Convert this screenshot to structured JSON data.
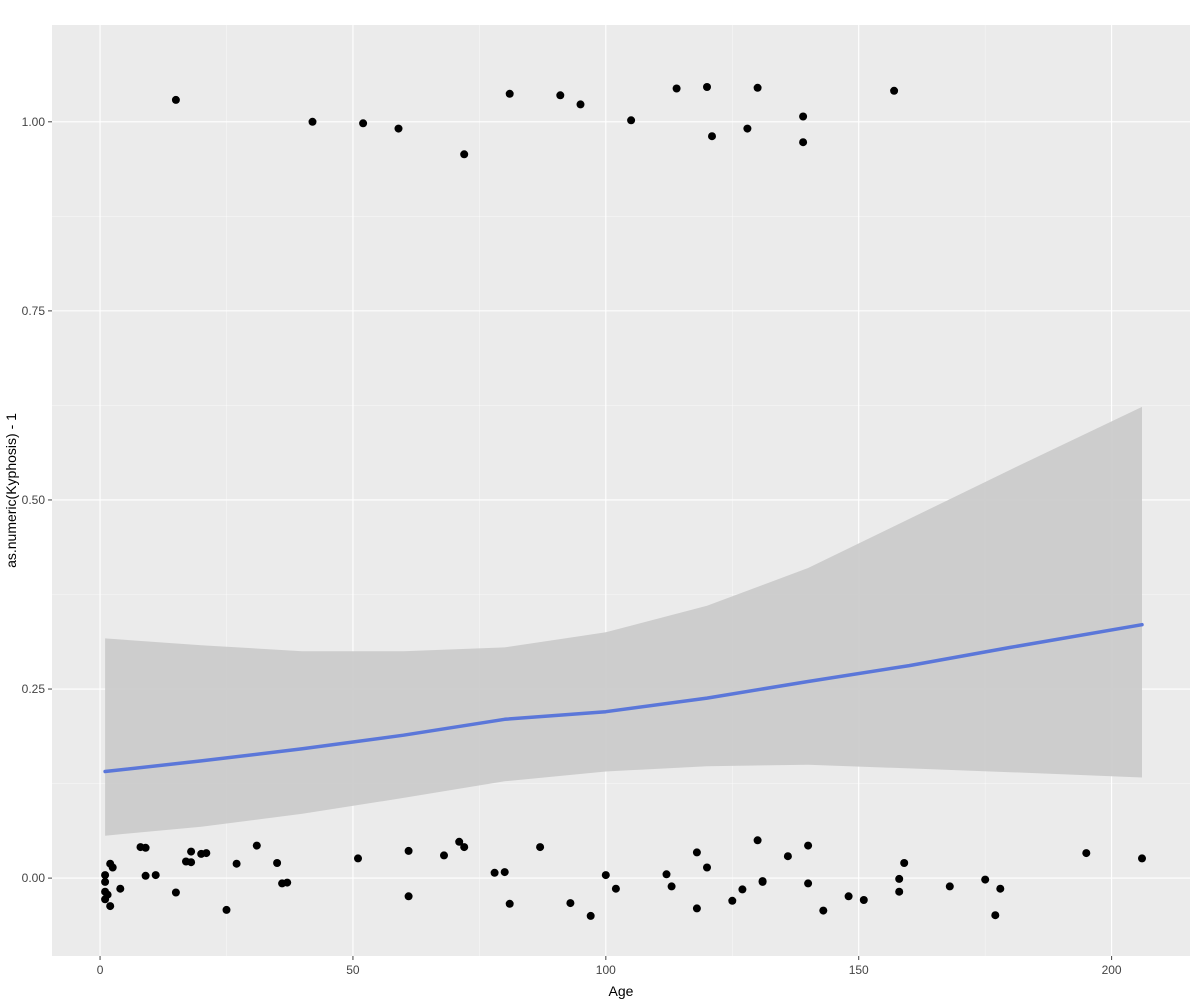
{
  "chart_data": {
    "type": "scatter",
    "title": "",
    "xlabel": "Age",
    "ylabel": "as.numeric(Kyphosis) - 1",
    "xlim": [
      -9.5,
      215.5
    ],
    "ylim": [
      -0.103,
      1.128
    ],
    "x_ticks": [
      0,
      50,
      100,
      150,
      200
    ],
    "y_ticks": [
      0,
      0.25,
      0.5,
      0.75,
      1
    ],
    "x_tick_labels": [
      "0",
      "50",
      "100",
      "150",
      "200"
    ],
    "y_tick_labels": [
      "0.00",
      "0.25",
      "0.50",
      "0.75",
      "1.00"
    ],
    "grid": true,
    "legend": "none",
    "colors": {
      "panel": "#EBEBEB",
      "grid": "#FFFFFF",
      "points": "#000000",
      "smooth_line": "#5B77D9",
      "ribbon": "#CBCBCB"
    },
    "series": [
      {
        "type": "scatter",
        "points": [
          [
            15,
            1.029
          ],
          [
            42,
            1.0
          ],
          [
            52,
            0.998
          ],
          [
            59,
            0.991
          ],
          [
            72,
            0.957
          ],
          [
            81,
            1.037
          ],
          [
            91,
            1.035
          ],
          [
            95,
            1.023
          ],
          [
            105,
            1.002
          ],
          [
            114,
            1.044
          ],
          [
            120,
            1.046
          ],
          [
            121,
            0.981
          ],
          [
            128,
            0.991
          ],
          [
            130,
            1.045
          ],
          [
            139,
            0.973
          ],
          [
            139,
            1.007
          ],
          [
            157,
            1.041
          ],
          [
            1,
            -0.005
          ],
          [
            1,
            -0.018
          ],
          [
            1,
            -0.028
          ],
          [
            1,
            0.004
          ],
          [
            1.5,
            -0.022
          ],
          [
            2,
            0.019
          ],
          [
            2,
            -0.037
          ],
          [
            2.5,
            0.014
          ],
          [
            4,
            -0.014
          ],
          [
            8,
            0.041
          ],
          [
            9,
            0.04
          ],
          [
            9,
            0.003
          ],
          [
            11,
            0.004
          ],
          [
            15,
            -0.019
          ],
          [
            17,
            0.022
          ],
          [
            18,
            0.021
          ],
          [
            18,
            0.035
          ],
          [
            20,
            0.032
          ],
          [
            21,
            0.033
          ],
          [
            25,
            -0.042
          ],
          [
            27,
            0.019
          ],
          [
            31,
            0.043
          ],
          [
            35,
            0.02
          ],
          [
            36,
            -0.007
          ],
          [
            37,
            -0.006
          ],
          [
            51,
            0.026
          ],
          [
            61,
            0.036
          ],
          [
            61,
            -0.024
          ],
          [
            68,
            0.03
          ],
          [
            71,
            0.048
          ],
          [
            72,
            0.041
          ],
          [
            78,
            0.007
          ],
          [
            80,
            0.008
          ],
          [
            81,
            -0.034
          ],
          [
            87,
            0.041
          ],
          [
            93,
            -0.033
          ],
          [
            97,
            -0.05
          ],
          [
            100,
            0.004
          ],
          [
            102,
            -0.014
          ],
          [
            112,
            0.005
          ],
          [
            113,
            -0.011
          ],
          [
            118,
            0.034
          ],
          [
            118,
            -0.04
          ],
          [
            120,
            0.014
          ],
          [
            125,
            -0.03
          ],
          [
            127,
            -0.015
          ],
          [
            130,
            0.05
          ],
          [
            131,
            -0.005
          ],
          [
            131,
            -0.004
          ],
          [
            136,
            0.029
          ],
          [
            140,
            0.043
          ],
          [
            140,
            -0.007
          ],
          [
            143,
            -0.043
          ],
          [
            148,
            -0.024
          ],
          [
            151,
            -0.029
          ],
          [
            158,
            -0.001
          ],
          [
            158,
            -0.018
          ],
          [
            159,
            0.02
          ],
          [
            168,
            -0.011
          ],
          [
            175,
            -0.002
          ],
          [
            177,
            -0.049
          ],
          [
            178,
            -0.014
          ],
          [
            195,
            0.033
          ],
          [
            206,
            0.026
          ]
        ]
      },
      {
        "type": "line",
        "points": [
          [
            1,
            0.141
          ],
          [
            20,
            0.155
          ],
          [
            40,
            0.171
          ],
          [
            60,
            0.189
          ],
          [
            80,
            0.21
          ],
          [
            100,
            0.22
          ],
          [
            120,
            0.238
          ],
          [
            140,
            0.26
          ],
          [
            160,
            0.281
          ],
          [
            180,
            0.305
          ],
          [
            206,
            0.335
          ]
        ]
      },
      {
        "type": "area",
        "upper": [
          [
            1,
            0.317
          ],
          [
            20,
            0.308
          ],
          [
            40,
            0.3
          ],
          [
            60,
            0.3
          ],
          [
            80,
            0.305
          ],
          [
            100,
            0.325
          ],
          [
            120,
            0.36
          ],
          [
            140,
            0.41
          ],
          [
            160,
            0.475
          ],
          [
            180,
            0.54
          ],
          [
            206,
            0.623
          ]
        ],
        "lower": [
          [
            1,
            0.056
          ],
          [
            20,
            0.068
          ],
          [
            40,
            0.085
          ],
          [
            60,
            0.106
          ],
          [
            80,
            0.128
          ],
          [
            100,
            0.141
          ],
          [
            120,
            0.148
          ],
          [
            140,
            0.15
          ],
          [
            160,
            0.145
          ],
          [
            180,
            0.14
          ],
          [
            206,
            0.133
          ]
        ]
      }
    ]
  }
}
